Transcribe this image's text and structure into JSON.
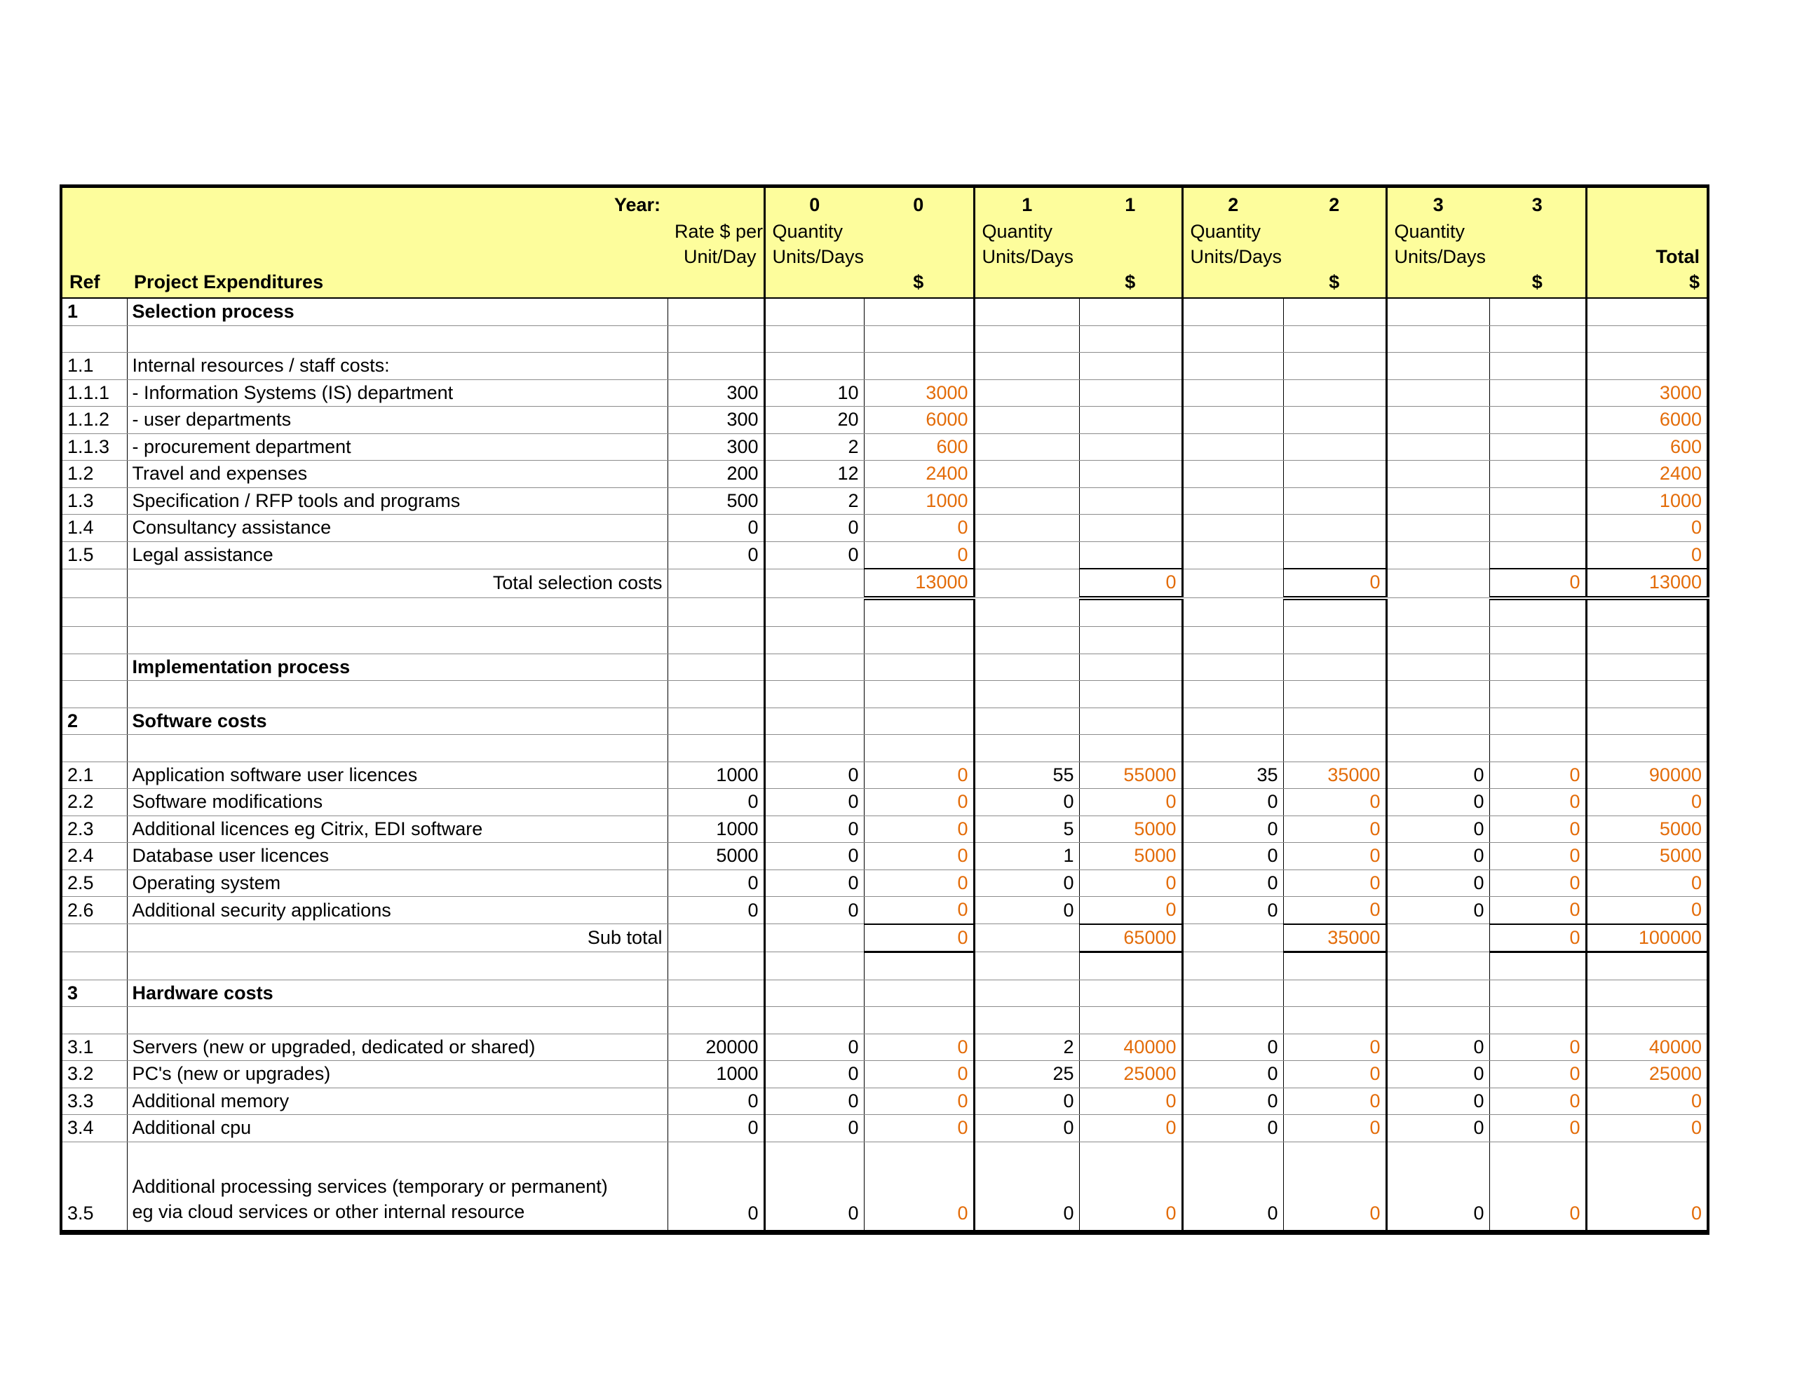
{
  "table": {
    "colors": {
      "header_background": "#FDFD9C",
      "computed_value_orange": "#E36C09",
      "grid_black": "#000000",
      "row_line_gray": "#8C8C8C"
    },
    "header": {
      "year_label": "Year:",
      "years": [
        "0",
        "1",
        "2",
        "3"
      ],
      "rate_label_line1": "Rate $ per",
      "rate_label_line2": "Unit/Day",
      "qty_label_line1": "Quantity",
      "qty_label_line2": "Units/Days",
      "dollar_label": "$",
      "ref_label": "Ref",
      "expenditure_label": "Project Expenditures",
      "total_label": "Total"
    },
    "rows": [
      {
        "type": "section",
        "ref": "1",
        "desc": "Selection process"
      },
      {
        "type": "blank"
      },
      {
        "type": "item",
        "ref": "1.1",
        "desc": "Internal resources / staff costs:"
      },
      {
        "type": "item",
        "ref": "1.1.1",
        "desc": "- Information Systems (IS) department",
        "rate": "300",
        "q0": "10",
        "d0": "3000",
        "total": "3000"
      },
      {
        "type": "item",
        "ref": "1.1.2",
        "desc": "- user departments",
        "rate": "300",
        "q0": "20",
        "d0": "6000",
        "total": "6000"
      },
      {
        "type": "item",
        "ref": "1.1.3",
        "desc": "- procurement department",
        "rate": "300",
        "q0": "2",
        "d0": "600",
        "total": "600"
      },
      {
        "type": "item",
        "ref": "1.2",
        "desc": "Travel and expenses",
        "rate": "200",
        "q0": "12",
        "d0": "2400",
        "total": "2400"
      },
      {
        "type": "item",
        "ref": "1.3",
        "desc": "Specification / RFP tools and programs",
        "rate": "500",
        "q0": "2",
        "d0": "1000",
        "total": "1000"
      },
      {
        "type": "item",
        "ref": "1.4",
        "desc": "Consultancy assistance",
        "rate": "0",
        "q0": "0",
        "d0": "0",
        "total": "0"
      },
      {
        "type": "item",
        "ref": "1.5",
        "desc": "Legal assistance",
        "rate": "0",
        "q0": "0",
        "d0": "0",
        "total": "0"
      },
      {
        "type": "total_row",
        "desc": "Total selection costs",
        "d0": "13000",
        "d1": "0",
        "d2": "0",
        "d3": "0",
        "total": "13000"
      },
      {
        "type": "blank"
      },
      {
        "type": "blank"
      },
      {
        "type": "section",
        "ref": "",
        "desc": "Implementation process"
      },
      {
        "type": "blank"
      },
      {
        "type": "section",
        "ref": "2",
        "desc": "Software costs"
      },
      {
        "type": "blank"
      },
      {
        "type": "item",
        "ref": "2.1",
        "desc": "Application software user licences",
        "rate": "1000",
        "q0": "0",
        "d0": "0",
        "q1": "55",
        "d1": "55000",
        "q2": "35",
        "d2": "35000",
        "q3": "0",
        "d3": "0",
        "total": "90000"
      },
      {
        "type": "item",
        "ref": "2.2",
        "desc": "Software modifications",
        "rate": "0",
        "q0": "0",
        "d0": "0",
        "q1": "0",
        "d1": "0",
        "q2": "0",
        "d2": "0",
        "q3": "0",
        "d3": "0",
        "total": "0"
      },
      {
        "type": "item",
        "ref": "2.3",
        "desc": "Additional licences eg Citrix, EDI software",
        "rate": "1000",
        "q0": "0",
        "d0": "0",
        "q1": "5",
        "d1": "5000",
        "q2": "0",
        "d2": "0",
        "q3": "0",
        "d3": "0",
        "total": "5000"
      },
      {
        "type": "item",
        "ref": "2.4",
        "desc": "Database user licences",
        "rate": "5000",
        "q0": "0",
        "d0": "0",
        "q1": "1",
        "d1": "5000",
        "q2": "0",
        "d2": "0",
        "q3": "0",
        "d3": "0",
        "total": "5000"
      },
      {
        "type": "item",
        "ref": "2.5",
        "desc": "Operating system",
        "rate": "0",
        "q0": "0",
        "d0": "0",
        "q1": "0",
        "d1": "0",
        "q2": "0",
        "d2": "0",
        "q3": "0",
        "d3": "0",
        "total": "0"
      },
      {
        "type": "item",
        "ref": "2.6",
        "desc": "Additional security applications",
        "rate": "0",
        "q0": "0",
        "d0": "0",
        "q1": "0",
        "d1": "0",
        "q2": "0",
        "d2": "0",
        "q3": "0",
        "d3": "0",
        "total": "0"
      },
      {
        "type": "subtotal_row",
        "desc": "Sub total",
        "d0": "0",
        "d1": "65000",
        "d2": "35000",
        "d3": "0",
        "total": "100000"
      },
      {
        "type": "blank"
      },
      {
        "type": "section",
        "ref": "3",
        "desc": "Hardware costs"
      },
      {
        "type": "blank"
      },
      {
        "type": "item",
        "ref": "3.1",
        "desc": "Servers (new or upgraded, dedicated or shared)",
        "rate": "20000",
        "q0": "0",
        "d0": "0",
        "q1": "2",
        "d1": "40000",
        "q2": "0",
        "d2": "0",
        "q3": "0",
        "d3": "0",
        "total": "40000"
      },
      {
        "type": "item",
        "ref": "3.2",
        "desc": "PC's (new or upgrades)",
        "rate": "1000",
        "q0": "0",
        "d0": "0",
        "q1": "25",
        "d1": "25000",
        "q2": "0",
        "d2": "0",
        "q3": "0",
        "d3": "0",
        "total": "25000"
      },
      {
        "type": "item",
        "ref": "3.3",
        "desc": "Additional memory",
        "rate": "0",
        "q0": "0",
        "d0": "0",
        "q1": "0",
        "d1": "0",
        "q2": "0",
        "d2": "0",
        "q3": "0",
        "d3": "0",
        "total": "0"
      },
      {
        "type": "item",
        "ref": "3.4",
        "desc": "Additional cpu",
        "rate": "0",
        "q0": "0",
        "d0": "0",
        "q1": "0",
        "d1": "0",
        "q2": "0",
        "d2": "0",
        "q3": "0",
        "d3": "0",
        "total": "0"
      },
      {
        "type": "item_tall",
        "ref": "3.5",
        "desc": "Additional processing services (temporary or permanent)\neg via cloud services or other internal resource",
        "rate": "0",
        "q0": "0",
        "d0": "0",
        "q1": "0",
        "d1": "0",
        "q2": "0",
        "d2": "0",
        "q3": "0",
        "d3": "0",
        "total": "0"
      }
    ]
  }
}
